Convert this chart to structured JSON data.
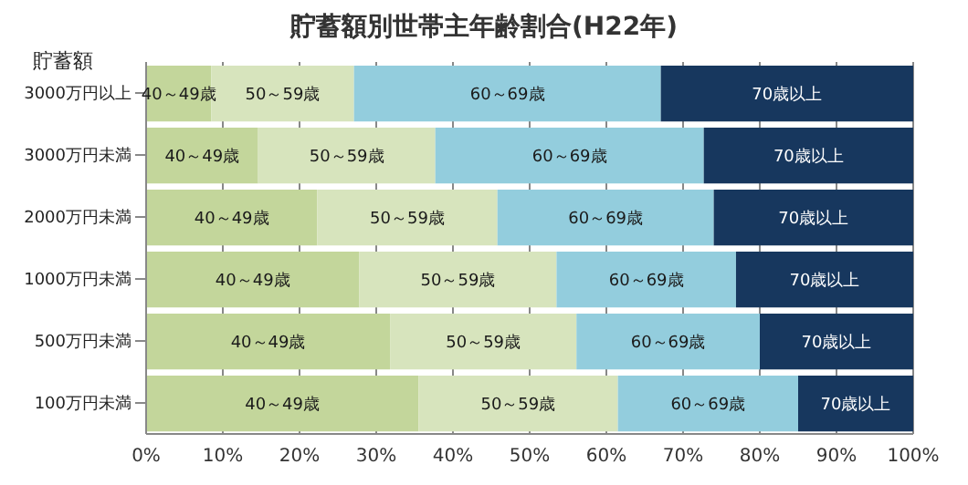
{
  "chart_data": {
    "type": "bar",
    "orientation": "horizontal",
    "stacked": true,
    "title": "貯蓄額別世帯主年齢割合(H22年)",
    "ylabel": "貯蓄額",
    "categories": [
      "3000万円以上",
      "3000万円未満",
      "2000万円未満",
      "1000万円未満",
      "500万円未満",
      "100万円未満"
    ],
    "series": [
      {
        "name": "40～49歳",
        "color": "#c3d69b",
        "values": [
          8.5,
          14.6,
          22.3,
          27.8,
          31.8,
          35.5
        ]
      },
      {
        "name": "50～59歳",
        "color": "#d7e4bd",
        "values": [
          18.6,
          23.1,
          23.5,
          25.7,
          24.3,
          26.0
        ]
      },
      {
        "name": "60～69歳",
        "color": "#93cddd",
        "values": [
          40.0,
          35.0,
          28.2,
          23.4,
          23.9,
          23.5
        ]
      },
      {
        "name": "70歳以上",
        "color": "#17375e",
        "values": [
          32.9,
          27.3,
          26.0,
          23.1,
          20.0,
          15.0
        ]
      }
    ],
    "xlim": [
      0,
      100
    ],
    "xticks": [
      {
        "value": 0,
        "label": "0%"
      },
      {
        "value": 10,
        "label": "10%"
      },
      {
        "value": 20,
        "label": "20%"
      },
      {
        "value": 30,
        "label": "30%"
      },
      {
        "value": 40,
        "label": "40%"
      },
      {
        "value": 50,
        "label": "50%"
      },
      {
        "value": 60,
        "label": "60%"
      },
      {
        "value": 70,
        "label": "70%"
      },
      {
        "value": 80,
        "label": "80%"
      },
      {
        "value": 90,
        "label": "90%"
      },
      {
        "value": 100,
        "label": "100%"
      }
    ],
    "grid": "x",
    "legend": false
  }
}
